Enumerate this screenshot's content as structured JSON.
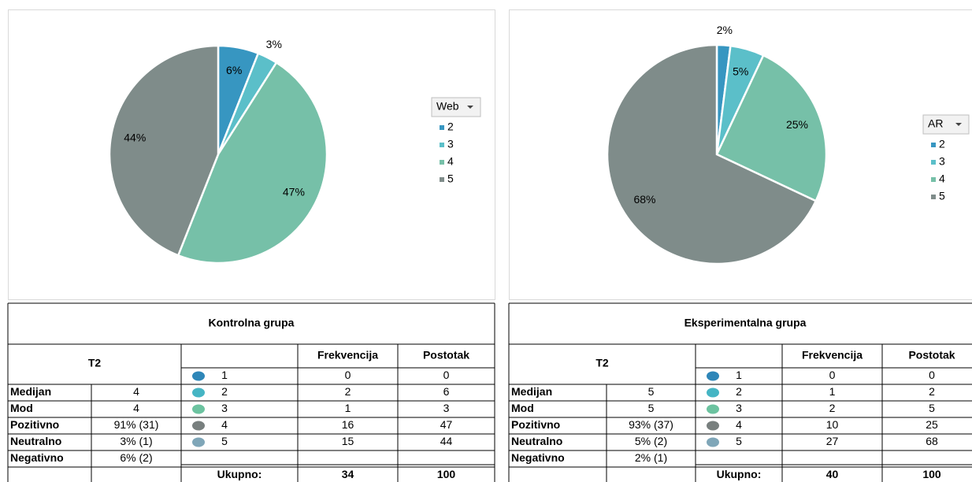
{
  "chart_data": [
    {
      "type": "pie",
      "legend_title": "Web",
      "categories": [
        "2",
        "3",
        "4",
        "5"
      ],
      "values": [
        6,
        3,
        47,
        44
      ],
      "value_labels": [
        "6%",
        "3%",
        "47%",
        "44%"
      ],
      "colors": [
        "#3796c1",
        "#5bbfc9",
        "#76c0a8",
        "#7f8c8a"
      ]
    },
    {
      "type": "pie",
      "legend_title": "AR",
      "categories": [
        "2",
        "3",
        "4",
        "5"
      ],
      "values": [
        2,
        5,
        25,
        68
      ],
      "value_labels": [
        "2%",
        "5%",
        "25%",
        "68%"
      ],
      "colors": [
        "#3796c1",
        "#5bbfc9",
        "#76c0a8",
        "#7f8c8a"
      ]
    }
  ],
  "tables": [
    {
      "title": "Kontrolna grupa",
      "label": "T2",
      "headers": [
        "Frekvencija",
        "Postotak"
      ],
      "stats": [
        [
          "Medijan",
          "4"
        ],
        [
          "Mod",
          "4"
        ],
        [
          "Pozitivno",
          "91% (31)"
        ],
        [
          "Neutralno",
          "3% (1)"
        ],
        [
          "Negativno",
          "6% (2)"
        ]
      ],
      "grades": [
        [
          "1",
          "0",
          "0"
        ],
        [
          "2",
          "2",
          "6"
        ],
        [
          "3",
          "1",
          "3"
        ],
        [
          "4",
          "16",
          "47"
        ],
        [
          "5",
          "15",
          "44"
        ]
      ],
      "dot_colors": [
        "#2e86b8",
        "#45b5c4",
        "#6cc3a0",
        "#787f7e",
        "#7fa6b8"
      ],
      "total_label": "Ukupno:",
      "total": [
        "34",
        "100"
      ]
    },
    {
      "title": "Eksperimentalna grupa",
      "label": "T2",
      "headers": [
        "Frekvencija",
        "Postotak"
      ],
      "stats": [
        [
          "Medijan",
          "5"
        ],
        [
          "Mod",
          "5"
        ],
        [
          "Pozitivno",
          "93% (37)"
        ],
        [
          "Neutralno",
          "5% (2)"
        ],
        [
          "Negativno",
          "2% (1)"
        ]
      ],
      "grades": [
        [
          "1",
          "0",
          "0"
        ],
        [
          "2",
          "1",
          "2"
        ],
        [
          "3",
          "2",
          "5"
        ],
        [
          "4",
          "10",
          "25"
        ],
        [
          "5",
          "27",
          "68"
        ]
      ],
      "dot_colors": [
        "#2e86b8",
        "#45b5c4",
        "#6cc3a0",
        "#787f7e",
        "#7fa6b8"
      ],
      "total_label": "Ukupno:",
      "total": [
        "40",
        "100"
      ]
    }
  ]
}
